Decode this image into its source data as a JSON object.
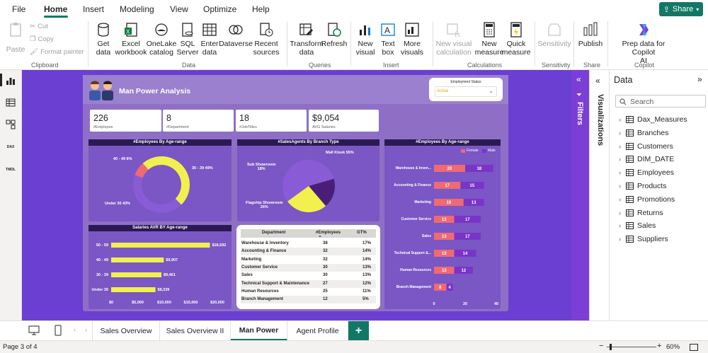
{
  "menu": {
    "file": "File",
    "home": "Home",
    "insert": "Insert",
    "modeling": "Modeling",
    "view": "View",
    "optimize": "Optimize",
    "help": "Help",
    "share": "Share"
  },
  "ribbon": {
    "paste": "Paste",
    "cut": "Cut",
    "copy": "Copy",
    "format_painter": "Format painter",
    "get_data": "Get\ndata",
    "excel": "Excel\nworkbook",
    "onelake": "OneLake\ncatalog",
    "sql": "SQL\nServer",
    "enter_data": "Enter\ndata",
    "dataverse": "Dataverse",
    "recent": "Recent\nsources",
    "transform": "Transform\ndata",
    "refresh": "Refresh",
    "new_visual": "New\nvisual",
    "text_box": "Text\nbox",
    "more_visuals": "More\nvisuals",
    "new_visual_calc": "New visual\ncalculation",
    "new_measure": "New\nmeasure",
    "quick_measure": "Quick\nmeasure",
    "sensitivity": "Sensitivity",
    "publish": "Publish",
    "copilot": "Prep data for Copilot\nAI",
    "groups": {
      "clipboard": "Clipboard",
      "data": "Data",
      "queries": "Queries",
      "insert": "Insert",
      "calculations": "Calculations",
      "sensitivity": "Sensitivity",
      "share": "Share",
      "copilot": "Copilot"
    }
  },
  "report": {
    "title": "Man Power Analysis",
    "slicer": {
      "label": "Employment Status",
      "value": "Active"
    },
    "cards": [
      {
        "value": "226",
        "label": "#Employee"
      },
      {
        "value": "8",
        "label": "#Department"
      },
      {
        "value": "18",
        "label": "#JobTitles"
      },
      {
        "value": "$9,054",
        "label": "AVG Salaries"
      }
    ],
    "donut": {
      "title": "#Employees By Age-range",
      "labels": [
        "40 - 49 8%",
        "30 - 39 49%",
        "Under 30 43%"
      ]
    },
    "pie": {
      "title": "#SalesAgents By Branch Type",
      "labels": [
        "Mall Kiosk 55%",
        "Sub Showroom\n18%",
        "Flagship Showroom\n26%"
      ]
    },
    "salary": {
      "title": "Salaries AVR BY Age-range",
      "axis": [
        "$0",
        "$5,000",
        "$10,000",
        "$15,000",
        "$20,000"
      ]
    },
    "table": {
      "headers": [
        "Department",
        "#Employees",
        "GT%"
      ],
      "rows": [
        [
          "Warehouse & Inventory",
          "38",
          "17%"
        ],
        [
          "Accounting & Finance",
          "32",
          "14%"
        ],
        [
          "Marketing",
          "32",
          "14%"
        ],
        [
          "Customer Service",
          "30",
          "13%"
        ],
        [
          "Sales",
          "30",
          "13%"
        ],
        [
          "Technical Support & Maintenance",
          "27",
          "12%"
        ],
        [
          "Human Resources",
          "25",
          "11%"
        ],
        [
          "Branch Management",
          "12",
          "5%"
        ]
      ]
    },
    "gender": {
      "title": "#Employees By Age-range",
      "legend": [
        "Female",
        "Male"
      ],
      "axis": [
        "0",
        "20",
        "40"
      ]
    }
  },
  "chart_data": [
    {
      "type": "pie",
      "title": "#Employees By Age-range",
      "categories": [
        "40 - 49",
        "30 - 39",
        "Under 30"
      ],
      "values": [
        8,
        49,
        43
      ],
      "colors": [
        "#ef6a73",
        "#f2f04e",
        "#8a5bd6"
      ]
    },
    {
      "type": "pie",
      "title": "#SalesAgents By Branch Type",
      "categories": [
        "Mall Kiosk",
        "Sub Showroom",
        "Flagship Showroom"
      ],
      "values": [
        55,
        18,
        26
      ],
      "colors": [
        "#8a5bd6",
        "#4a1d78",
        "#f2f04e"
      ]
    },
    {
      "type": "bar",
      "title": "Salaries AVR BY Age-range",
      "categories": [
        "50 - 59",
        "40 - 49",
        "30 - 39",
        "Under 30"
      ],
      "values": [
        18592,
        9907,
        9461,
        8339
      ],
      "value_labels": [
        "$18,592",
        "$9,907",
        "$9,461",
        "$8,339"
      ],
      "xlim": [
        0,
        20000
      ]
    },
    {
      "type": "bar",
      "title": "#Employees By Age-range",
      "categories": [
        "Warehouse & Inven...",
        "Accounting & Finance",
        "Marketing",
        "Customer Service",
        "Sales",
        "Technical Support &...",
        "Human Resources",
        "Branch Management"
      ],
      "series": [
        {
          "name": "Female",
          "values": [
            20,
            17,
            19,
            13,
            13,
            13,
            13,
            8
          ]
        },
        {
          "name": "Male",
          "values": [
            18,
            15,
            13,
            17,
            17,
            14,
            12,
            4
          ]
        }
      ],
      "xlim": [
        0,
        40
      ]
    }
  ],
  "panes": {
    "filters": "Filters",
    "visualizations": "Visualizations",
    "data": "Data",
    "search_placeholder": "Search",
    "tables": [
      "Dax_Measures",
      "Branches",
      "Customers",
      "DIM_DATE",
      "Employees",
      "Products",
      "Promotions",
      "Returns",
      "Sales",
      "Suppliers"
    ]
  },
  "tabs": [
    "Sales Overview",
    "Sales Overview II",
    "Man Power",
    "Agent Profile"
  ],
  "status": {
    "page": "Page 3 of 4",
    "zoom": "60%"
  },
  "colors": {
    "accent": "#117865",
    "canvas": "#6b3fd1"
  }
}
